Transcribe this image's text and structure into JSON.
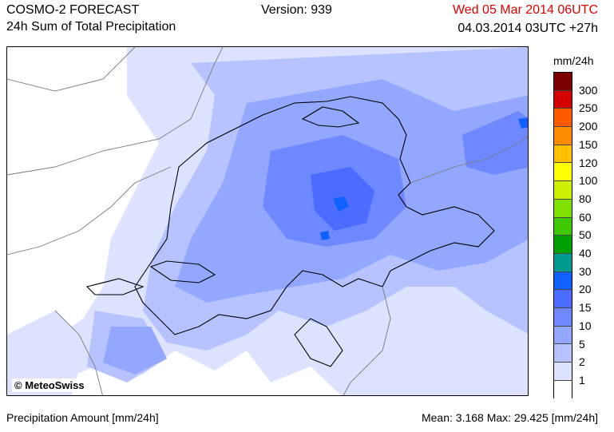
{
  "header": {
    "model_title": "COSMO-2 FORECAST",
    "product_title": "24h Sum of Total Precipitation",
    "version": "Version: 939",
    "valid_time": "Wed 05 Mar 2014 06UTC",
    "run_time": "04.03.2014 03UTC +27h",
    "valid_time_color": "#e00000"
  },
  "legend": {
    "unit": "mm/24h",
    "classes": [
      {
        "label": "300",
        "color": "#7a0000"
      },
      {
        "label": "250",
        "color": "#d40000"
      },
      {
        "label": "200",
        "color": "#ff5a00"
      },
      {
        "label": "150",
        "color": "#ff8c00"
      },
      {
        "label": "120",
        "color": "#ffc000"
      },
      {
        "label": "100",
        "color": "#ffff00"
      },
      {
        "label": "80",
        "color": "#ccf000"
      },
      {
        "label": "60",
        "color": "#80e000"
      },
      {
        "label": "50",
        "color": "#40c800"
      },
      {
        "label": "40",
        "color": "#00a000"
      },
      {
        "label": "30",
        "color": "#009a90"
      },
      {
        "label": "20",
        "color": "#1060ff"
      },
      {
        "label": "15",
        "color": "#4c6bff"
      },
      {
        "label": "10",
        "color": "#6e88ff"
      },
      {
        "label": "5",
        "color": "#93a7ff"
      },
      {
        "label": "2",
        "color": "#b7c3ff"
      },
      {
        "label": "1",
        "color": "#dde3ff"
      },
      {
        "label": "",
        "color": "#ffffff"
      }
    ]
  },
  "map": {
    "copyright": "© MeteoSwiss"
  },
  "footer": {
    "parameter": "Precipitation Amount [mm/24h]",
    "stats": "Mean:   3.168 Max:  29.425 [mm/24h]"
  }
}
